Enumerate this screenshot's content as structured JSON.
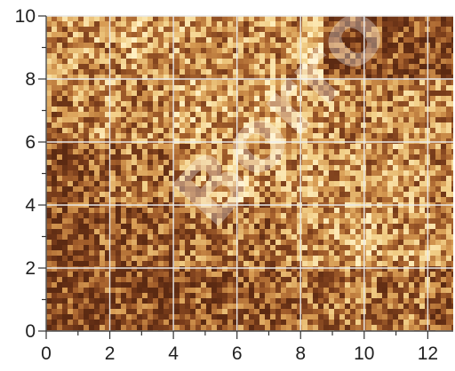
{
  "chart_data": {
    "type": "heatmap",
    "title": "",
    "xlabel": "",
    "ylabel": "",
    "xlim": [
      0,
      12.8
    ],
    "ylim": [
      0,
      10
    ],
    "x_ticks": [
      0,
      2,
      4,
      6,
      8,
      10,
      12
    ],
    "y_ticks": [
      0,
      2,
      4,
      6,
      8,
      10
    ],
    "x_tick_labels": [
      "0",
      "2",
      "4",
      "6",
      "8",
      "10",
      "12"
    ],
    "y_tick_labels": [
      "0",
      "2",
      "4",
      "6",
      "8",
      "10"
    ],
    "grid": true,
    "grid_color": "#e8e8e8",
    "colormap": [
      "#5c2a12",
      "#7a3d1b",
      "#a8632e",
      "#d69a52",
      "#f2cf88",
      "#fff0c2"
    ],
    "intensity_grid": {
      "x_step": 0.8,
      "y_step": 2,
      "rows_from_top": [
        [
          0.55,
          0.6,
          0.5,
          0.65,
          0.55,
          0.6,
          0.55,
          0.55,
          0.6,
          0.55,
          0.8,
          0.2,
          0.25,
          0.3,
          0.25,
          0.2
        ],
        [
          0.45,
          0.55,
          0.6,
          0.5,
          0.55,
          0.65,
          0.6,
          0.6,
          0.7,
          0.65,
          0.6,
          0.55,
          0.5,
          0.5,
          0.55,
          0.5
        ],
        [
          0.3,
          0.35,
          0.4,
          0.45,
          0.4,
          0.5,
          0.6,
          0.65,
          0.55,
          0.6,
          0.6,
          0.55,
          0.55,
          0.6,
          0.55,
          0.5
        ],
        [
          0.25,
          0.3,
          0.35,
          0.3,
          0.35,
          0.4,
          0.45,
          0.45,
          0.4,
          0.5,
          0.55,
          0.6,
          0.65,
          0.55,
          0.6,
          0.55
        ],
        [
          0.25,
          0.25,
          0.3,
          0.25,
          0.25,
          0.3,
          0.3,
          0.35,
          0.3,
          0.35,
          0.4,
          0.45,
          0.45,
          0.4,
          0.45,
          0.35
        ]
      ]
    }
  },
  "watermark": {
    "text": "Borro"
  }
}
